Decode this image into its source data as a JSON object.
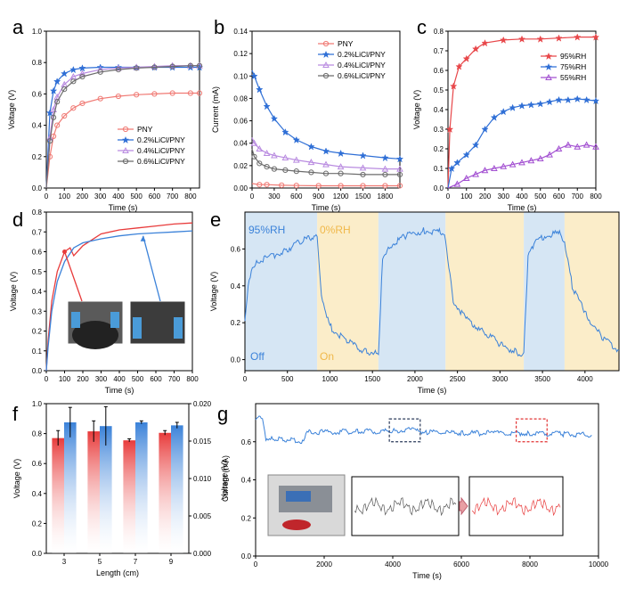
{
  "colors": {
    "pny": "#f07a74",
    "c02": "#2f6fd6",
    "c04": "#b98be0",
    "c06": "#6b6b6b",
    "rh95": "#e8474a",
    "rh75": "#2f6fd6",
    "rh55": "#a24fd1",
    "red": "#e83b3b",
    "blue": "#3b82d9",
    "grey": "#555555",
    "bgBlue": "#d6e6f4",
    "bgYellow": "#fbedc9",
    "boxDark": "#2a3a5a",
    "boxRed": "#e23333"
  },
  "chart_data": [
    {
      "panel": "a",
      "type": "line",
      "xlabel": "Time (s)",
      "ylabel": "Voltage (V)",
      "xlim": [
        0,
        850
      ],
      "ylim": [
        0,
        1.0
      ],
      "xticks": [
        "0",
        "100",
        "200",
        "300",
        "400",
        "500",
        "600",
        "700",
        "800"
      ],
      "yticks": [
        "0.0",
        "0.2",
        "0.4",
        "0.6",
        "0.8",
        "1.0"
      ],
      "legend_position": "bottom-right",
      "series": [
        {
          "name": "PNY",
          "color": "pny",
          "marker": "circle",
          "x": [
            0,
            20,
            40,
            60,
            100,
            150,
            200,
            300,
            400,
            500,
            600,
            700,
            800,
            850
          ],
          "y": [
            0,
            0.2,
            0.33,
            0.4,
            0.46,
            0.51,
            0.54,
            0.57,
            0.585,
            0.595,
            0.6,
            0.605,
            0.605,
            0.605
          ]
        },
        {
          "name": "0.2%LiCl/PNY",
          "color": "c02",
          "marker": "star",
          "x": [
            0,
            20,
            40,
            60,
            100,
            150,
            200,
            300,
            400,
            500,
            600,
            700,
            800,
            850
          ],
          "y": [
            0,
            0.48,
            0.62,
            0.68,
            0.73,
            0.755,
            0.765,
            0.77,
            0.77,
            0.77,
            0.77,
            0.77,
            0.77,
            0.77
          ]
        },
        {
          "name": "0.4%LiCl/PNY",
          "color": "c04",
          "marker": "triangle",
          "x": [
            0,
            20,
            40,
            60,
            100,
            150,
            200,
            300,
            400,
            500,
            600,
            700,
            800,
            850
          ],
          "y": [
            0,
            0.32,
            0.5,
            0.58,
            0.66,
            0.71,
            0.73,
            0.755,
            0.765,
            0.77,
            0.775,
            0.78,
            0.78,
            0.78
          ]
        },
        {
          "name": "0.6%LiCl/PNY",
          "color": "c06",
          "marker": "circle",
          "x": [
            0,
            20,
            40,
            60,
            100,
            150,
            200,
            300,
            400,
            500,
            600,
            700,
            800,
            850
          ],
          "y": [
            0,
            0.3,
            0.45,
            0.55,
            0.63,
            0.68,
            0.71,
            0.74,
            0.755,
            0.765,
            0.77,
            0.775,
            0.78,
            0.78
          ]
        }
      ]
    },
    {
      "panel": "b",
      "type": "line",
      "xlabel": "Time (s)",
      "ylabel": "Current (mA)",
      "xlim": [
        0,
        2000
      ],
      "ylim": [
        0,
        0.14
      ],
      "xticks": [
        "0",
        "300",
        "600",
        "900",
        "1200",
        "1500",
        "1800"
      ],
      "yticks": [
        "0.00",
        "0.02",
        "0.04",
        "0.06",
        "0.08",
        "0.10",
        "0.12",
        "0.14"
      ],
      "legend_position": "top-right",
      "series": [
        {
          "name": "PNY",
          "color": "pny",
          "marker": "circle",
          "x": [
            0,
            100,
            200,
            400,
            600,
            900,
            1200,
            1500,
            1800,
            2000
          ],
          "y": [
            0.004,
            0.003,
            0.003,
            0.0025,
            0.0022,
            0.002,
            0.002,
            0.002,
            0.002,
            0.002
          ]
        },
        {
          "name": "0.2%LiCl/PNY",
          "color": "c02",
          "marker": "star",
          "x": [
            0,
            30,
            100,
            200,
            300,
            450,
            600,
            800,
            1000,
            1200,
            1500,
            1800,
            2000
          ],
          "y": [
            0.105,
            0.1,
            0.088,
            0.073,
            0.062,
            0.05,
            0.043,
            0.037,
            0.033,
            0.031,
            0.029,
            0.027,
            0.026
          ]
        },
        {
          "name": "0.4%LiCl/PNY",
          "color": "c04",
          "marker": "triangle",
          "x": [
            0,
            30,
            100,
            200,
            300,
            450,
            600,
            800,
            1000,
            1200,
            1500,
            1800,
            2000
          ],
          "y": [
            0.045,
            0.04,
            0.035,
            0.031,
            0.029,
            0.027,
            0.025,
            0.023,
            0.021,
            0.019,
            0.018,
            0.017,
            0.017
          ]
        },
        {
          "name": "0.6%LiCl/PNY",
          "color": "c06",
          "marker": "circle",
          "x": [
            0,
            30,
            100,
            200,
            300,
            450,
            600,
            800,
            1000,
            1200,
            1500,
            1800,
            2000
          ],
          "y": [
            0.035,
            0.028,
            0.022,
            0.019,
            0.017,
            0.016,
            0.015,
            0.014,
            0.013,
            0.013,
            0.012,
            0.012,
            0.012
          ]
        }
      ]
    },
    {
      "panel": "c",
      "type": "line",
      "xlabel": "Time (s)",
      "ylabel": "Voltage (V)",
      "xlim": [
        0,
        800
      ],
      "ylim": [
        0,
        0.8
      ],
      "xticks": [
        "0",
        "100",
        "200",
        "300",
        "400",
        "500",
        "600",
        "700",
        "800"
      ],
      "yticks": [
        "0.0",
        "0.1",
        "0.2",
        "0.3",
        "0.4",
        "0.5",
        "0.6",
        "0.7",
        "0.8"
      ],
      "legend_position": "right",
      "series": [
        {
          "name": "95%RH",
          "color": "rh95",
          "marker": "star",
          "x": [
            0,
            10,
            30,
            60,
            100,
            150,
            200,
            300,
            400,
            500,
            600,
            700,
            800
          ],
          "y": [
            0,
            0.3,
            0.52,
            0.62,
            0.66,
            0.71,
            0.74,
            0.755,
            0.76,
            0.76,
            0.765,
            0.77,
            0.77
          ]
        },
        {
          "name": "75%RH",
          "color": "rh75",
          "marker": "star",
          "x": [
            0,
            20,
            50,
            100,
            150,
            200,
            250,
            300,
            350,
            400,
            450,
            500,
            550,
            600,
            650,
            700,
            750,
            800
          ],
          "y": [
            0,
            0.1,
            0.13,
            0.17,
            0.22,
            0.3,
            0.36,
            0.39,
            0.41,
            0.42,
            0.425,
            0.43,
            0.44,
            0.45,
            0.45,
            0.455,
            0.45,
            0.445
          ]
        },
        {
          "name": "55%RH",
          "color": "rh55",
          "marker": "triangle",
          "x": [
            0,
            50,
            100,
            150,
            200,
            250,
            300,
            350,
            400,
            450,
            500,
            550,
            600,
            650,
            700,
            750,
            800
          ],
          "y": [
            0,
            0.02,
            0.05,
            0.07,
            0.09,
            0.1,
            0.11,
            0.12,
            0.13,
            0.14,
            0.15,
            0.17,
            0.2,
            0.22,
            0.21,
            0.22,
            0.21
          ]
        }
      ]
    },
    {
      "panel": "d",
      "type": "line",
      "xlabel": "Time (s)",
      "ylabel": "Voltage (V)",
      "xlim": [
        0,
        800
      ],
      "ylim": [
        0,
        0.8
      ],
      "xticks": [
        "0",
        "100",
        "200",
        "300",
        "400",
        "500",
        "600",
        "700",
        "800"
      ],
      "yticks": [
        "0.0",
        "0.1",
        "0.2",
        "0.3",
        "0.4",
        "0.5",
        "0.6",
        "0.7",
        "0.8"
      ],
      "series": [
        {
          "name": "red",
          "color": "red",
          "x": [
            0,
            10,
            30,
            60,
            100,
            130,
            150,
            200,
            300,
            400,
            500,
            600,
            700,
            800
          ],
          "y": [
            0,
            0.15,
            0.35,
            0.5,
            0.6,
            0.62,
            0.58,
            0.63,
            0.69,
            0.71,
            0.72,
            0.73,
            0.74,
            0.745
          ]
        },
        {
          "name": "blue",
          "color": "blue",
          "x": [
            0,
            10,
            30,
            60,
            100,
            150,
            200,
            300,
            400,
            500,
            600,
            700,
            800
          ],
          "y": [
            0,
            0.12,
            0.3,
            0.45,
            0.55,
            0.62,
            0.645,
            0.665,
            0.68,
            0.69,
            0.695,
            0.7,
            0.705
          ]
        }
      ]
    },
    {
      "panel": "e",
      "type": "line",
      "xlabel": "Time (s)",
      "ylabel": "Voltage (V)",
      "xlim": [
        0,
        4400
      ],
      "ylim": [
        -0.06,
        0.8
      ],
      "xticks": [
        "0",
        "500",
        "1000",
        "1500",
        "2000",
        "2500",
        "3000",
        "3500",
        "4000"
      ],
      "yticks": [
        "0.0",
        "0.2",
        "0.4",
        "0.6"
      ],
      "annotations": {
        "rh95": "95%RH",
        "rh0": "0%RH",
        "off": "Off",
        "on": "On"
      },
      "bands": [
        {
          "from": 0,
          "to": 850,
          "state": "off"
        },
        {
          "from": 850,
          "to": 1570,
          "state": "on"
        },
        {
          "from": 1570,
          "to": 2360,
          "state": "off"
        },
        {
          "from": 2360,
          "to": 3280,
          "state": "on"
        },
        {
          "from": 3280,
          "to": 3760,
          "state": "off"
        },
        {
          "from": 3760,
          "to": 4400,
          "state": "on"
        }
      ],
      "series": [
        {
          "name": "voltage",
          "color": "blue",
          "x": [
            0,
            50,
            150,
            300,
            500,
            700,
            850,
            900,
            1000,
            1200,
            1400,
            1570,
            1620,
            1700,
            1900,
            2100,
            2300,
            2360,
            2450,
            2600,
            2800,
            3000,
            3200,
            3280,
            3330,
            3400,
            3550,
            3700,
            3760,
            3850,
            4000,
            4200,
            4400
          ],
          "y": [
            0.2,
            0.45,
            0.53,
            0.56,
            0.6,
            0.65,
            0.68,
            0.35,
            0.18,
            0.1,
            0.05,
            0.03,
            0.55,
            0.62,
            0.67,
            0.7,
            0.69,
            0.65,
            0.32,
            0.22,
            0.16,
            0.08,
            0.04,
            0.03,
            0.55,
            0.63,
            0.68,
            0.68,
            0.62,
            0.4,
            0.25,
            0.12,
            0.05
          ]
        }
      ]
    },
    {
      "panel": "f",
      "type": "bar",
      "xlabel": "Length (cm)",
      "ylabel": "Voltage (V)",
      "y2label": "Current (mA)",
      "categories": [
        "3",
        "5",
        "7",
        "9"
      ],
      "ylim": [
        0.0,
        1.0
      ],
      "y2lim": [
        0.0,
        0.02
      ],
      "yticks": [
        "0.0",
        "0.2",
        "0.4",
        "0.6",
        "0.8",
        "1.0"
      ],
      "y2ticks": [
        "0.000",
        "0.005",
        "0.010",
        "0.015",
        "0.020"
      ],
      "series": [
        {
          "name": "Voltage",
          "axis": "left",
          "color": "red",
          "values": [
            0.77,
            0.815,
            0.755,
            0.805
          ],
          "err": [
            0.05,
            0.07,
            0.01,
            0.015
          ]
        },
        {
          "name": "Current",
          "axis": "right",
          "color": "blue",
          "values": [
            0.0175,
            0.017,
            0.0175,
            0.0171
          ],
          "err": [
            0.002,
            0.0026,
            0.0002,
            0.0004
          ]
        }
      ]
    },
    {
      "panel": "g",
      "type": "line",
      "xlabel": "Time (s)",
      "ylabel": "Voltage (V)",
      "xlim": [
        0,
        10000
      ],
      "ylim": [
        0.0,
        0.8
      ],
      "xticks": [
        "0",
        "2000",
        "4000",
        "6000",
        "8000",
        "10000"
      ],
      "yticks": [
        "0.0",
        "0.2",
        "0.4",
        "0.6"
      ],
      "series": [
        {
          "name": "voltage",
          "color": "blue",
          "x": [
            0,
            100,
            200,
            300,
            500,
            800,
            1100,
            1400,
            1500,
            2000,
            3000,
            4000,
            4500,
            5000,
            6000,
            7000,
            8000,
            9000,
            9800
          ],
          "y": [
            0.72,
            0.74,
            0.73,
            0.62,
            0.62,
            0.61,
            0.61,
            0.6,
            0.65,
            0.65,
            0.655,
            0.655,
            0.665,
            0.65,
            0.645,
            0.645,
            0.645,
            0.64,
            0.635
          ]
        }
      ]
    }
  ],
  "panel_labels": [
    "a",
    "b",
    "c",
    "d",
    "e",
    "f",
    "g"
  ]
}
